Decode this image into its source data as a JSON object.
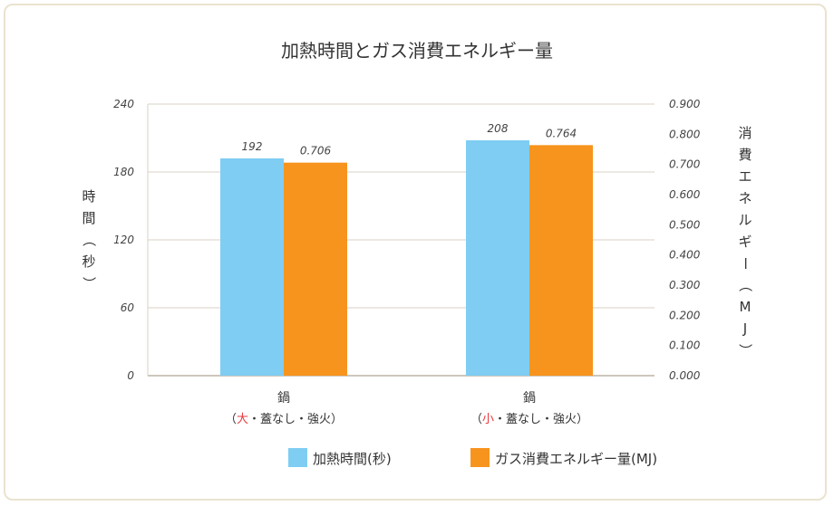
{
  "chart_data": {
    "type": "bar",
    "title": "加熱時間とガス消費エネルギー量",
    "categories": [
      {
        "name": "鍋",
        "sub_open": "（",
        "sub_size": "大",
        "sub_rest": "・蓋なし・強火",
        "sub_close": "）"
      },
      {
        "name": "鍋",
        "sub_open": "（",
        "sub_size": "小",
        "sub_rest": "・蓋なし・強火",
        "sub_close": "）"
      }
    ],
    "series": [
      {
        "name": "加熱時間(秒)",
        "axis": "left",
        "values": [
          192,
          208
        ],
        "labels": [
          "192",
          "208"
        ],
        "color": "#7fcdf3"
      },
      {
        "name": "ガス消費エネルギー量(MJ)",
        "axis": "right",
        "values": [
          0.706,
          0.764
        ],
        "labels": [
          "0.706",
          "0.764"
        ],
        "color": "#f7941d"
      }
    ],
    "y_left": {
      "label": [
        "時",
        "間",
        "（",
        "秒",
        "）"
      ],
      "ylim": [
        0,
        240
      ],
      "ticks": [
        "0",
        "60",
        "120",
        "180",
        "240"
      ]
    },
    "y_right": {
      "label": [
        "消",
        "費",
        "エ",
        "ネ",
        "ル",
        "ギ",
        "ー",
        "（",
        "M",
        "J",
        "）"
      ],
      "ylim": [
        0,
        0.9
      ],
      "ticks": [
        "0.000",
        "0.100",
        "0.200",
        "0.300",
        "0.400",
        "0.500",
        "0.600",
        "0.700",
        "0.800",
        "0.900"
      ]
    },
    "grid": true,
    "legend_position": "bottom-right",
    "accent_red": "#e8383d",
    "grid_color": "#d9d2c5",
    "frame_color": "#e9e3cf"
  }
}
